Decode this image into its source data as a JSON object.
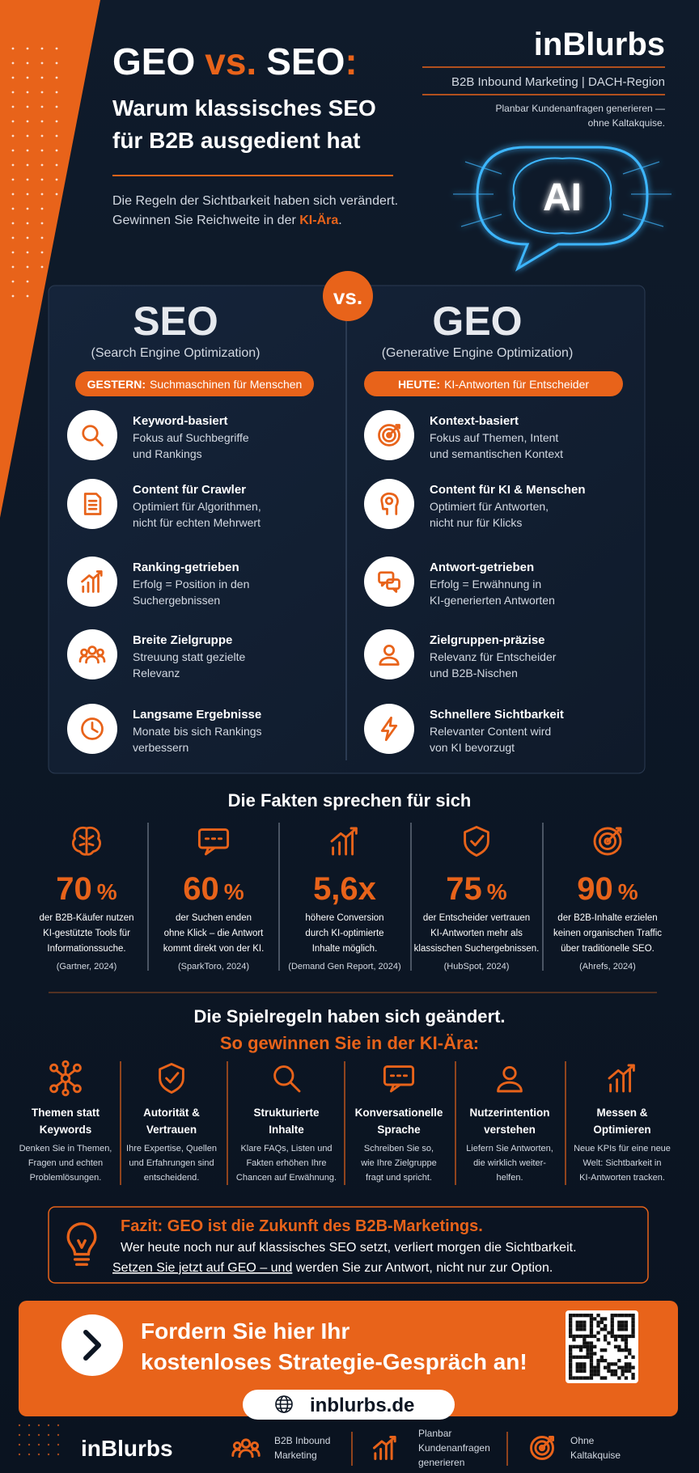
{
  "brand": {
    "name": "inBlurbs",
    "tagline": "B2B Inbound Marketing | DACH-Region",
    "claim_lines": [
      "Planbar Kundenanfragen generieren —",
      "ohne Kaltakquise."
    ],
    "ai": "AI"
  },
  "header": {
    "title": [
      "GEO",
      "vs.",
      "SEO",
      ":"
    ],
    "subtitle_lines": [
      "Warum klassisches SEO",
      "für B2B ausgedient hat"
    ],
    "intro_line1": "Die Regeln der Sichtbarkeit haben sich verändert.",
    "intro_line2": "Gewinnen Sie Reichweite in der ",
    "intro_highlight": "KI-Ära",
    "intro_end": "."
  },
  "comparison": {
    "vs": "vs.",
    "columns": [
      {
        "title": "SEO",
        "subtitle": "(Search Engine Optimization)",
        "badge_label": "GESTERN:",
        "badge_text": "Suchmaschinen für Menschen",
        "items": [
          {
            "title": "Keyword-basiert",
            "lines": [
              "Fokus auf Suchbegriffe",
              "und Rankings"
            ]
          },
          {
            "title": "Content für Crawler",
            "lines": [
              "Optimiert für Algorithmen,",
              "nicht für echten Mehrwert"
            ]
          },
          {
            "title": "Ranking-getrieben",
            "lines": [
              "Erfolg = Position in den",
              "Suchergebnissen"
            ]
          },
          {
            "title": "Breite Zielgruppe",
            "lines": [
              "Streuung statt gezielte",
              "Relevanz"
            ]
          },
          {
            "title": "Langsame Ergebnisse",
            "lines": [
              "Monate bis sich Rankings",
              "verbessern"
            ]
          }
        ]
      },
      {
        "title": "GEO",
        "subtitle": "(Generative Engine Optimization)",
        "badge_label": "HEUTE:",
        "badge_text": "KI-Antworten für Entscheider",
        "items": [
          {
            "title": "Kontext-basiert",
            "lines": [
              "Fokus auf Themen, Intent",
              "und semantischen Kontext"
            ]
          },
          {
            "title": "Content für KI & Menschen",
            "lines": [
              "Optimiert für Antworten,",
              "nicht nur für Klicks"
            ]
          },
          {
            "title": "Antwort-getrieben",
            "lines": [
              "Erfolg = Erwähnung in",
              "KI-generierten Antworten"
            ]
          },
          {
            "title": "Zielgruppen-präzise",
            "lines": [
              "Relevanz für Entscheider",
              "und B2B-Nischen"
            ]
          },
          {
            "title": "Schnellere Sichtbarkeit",
            "lines": [
              "Relevanter Content wird",
              "von KI bevorzugt"
            ]
          }
        ]
      }
    ]
  },
  "facts": {
    "title": "Die Fakten sprechen für sich",
    "items": [
      {
        "value": "70",
        "unit": "%",
        "lines": [
          "der B2B-Käufer nutzen",
          "KI-gestützte Tools für",
          "Informationssuche."
        ],
        "source": "(Gartner, 2024)"
      },
      {
        "value": "60",
        "unit": "%",
        "lines": [
          "der Suchen enden",
          "ohne Klick – die Antwort",
          "kommt direkt von der KI."
        ],
        "source": "(SparkToro, 2024)"
      },
      {
        "value": "5,6x",
        "lines": [
          "höhere Conversion",
          "durch KI-optimierte",
          "Inhalte möglich."
        ],
        "source": "(Demand Gen Report, 2024)"
      },
      {
        "value": "75",
        "unit": "%",
        "lines": [
          "der Entscheider vertrauen",
          "KI-Antworten mehr als",
          "klassischen Suchergebnissen."
        ],
        "source": "(HubSpot, 2024)"
      },
      {
        "value": "90",
        "unit": "%",
        "lines": [
          "der B2B-Inhalte erzielen",
          "keinen organischen Traffic",
          "über traditionelle SEO."
        ],
        "source": "(Ahrefs, 2024)"
      }
    ]
  },
  "rules": {
    "title": "Die Spielregeln haben sich geändert.",
    "subtitle": "So gewinnen Sie in der KI-Ära:",
    "items": [
      {
        "title_lines": [
          "Themen statt",
          "Keywords"
        ],
        "text_lines": [
          "Denken Sie in Themen,",
          "Fragen und echten",
          "Problemlösungen."
        ]
      },
      {
        "title_lines": [
          "Autorität &",
          "Vertrauen"
        ],
        "text_lines": [
          "Ihre Expertise, Quellen",
          "und Erfahrungen sind",
          "entscheidend."
        ]
      },
      {
        "title_lines": [
          "Strukturierte",
          "Inhalte"
        ],
        "text_lines": [
          "Klare FAQs, Listen und",
          "Fakten erhöhen Ihre",
          "Chancen auf Erwähnung."
        ]
      },
      {
        "title_lines": [
          "Konversationelle",
          "Sprache"
        ],
        "text_lines": [
          "Schreiben Sie so,",
          "wie Ihre Zielgruppe",
          "fragt und spricht."
        ]
      },
      {
        "title_lines": [
          "Nutzerintention",
          "verstehen"
        ],
        "text_lines": [
          "Liefern Sie Antworten,",
          "die wirklich weiter-",
          "helfen."
        ]
      },
      {
        "title_lines": [
          "Messen &",
          "Optimieren"
        ],
        "text_lines": [
          "Neue KPIs für eine neue",
          "Welt: Sichtbarkeit in",
          "KI-Antworten tracken."
        ]
      }
    ]
  },
  "conclusion": {
    "title": "Fazit: GEO ist die Zukunft des B2B-Marketings.",
    "line1": "Wer heute noch nur auf klassisches SEO setzt, verliert morgen die Sichtbarkeit.",
    "line2_underlined": "Setzen Sie jetzt auf GEO – und",
    "line2_rest": " werden Sie zur Antwort, nicht nur zur Option."
  },
  "cta": {
    "lines": [
      "Fordern Sie hier Ihr",
      "kostenloses Strategie-Gespräch an!"
    ],
    "url": "inblurbs.de"
  },
  "footer": {
    "brand": "inBlurbs",
    "items": [
      {
        "lines": [
          "B2B Inbound",
          "Marketing"
        ]
      },
      {
        "lines": [
          "Planbar",
          "Kundenanfragen",
          "generieren"
        ]
      },
      {
        "lines": [
          "Ohne",
          "Kaltakquise"
        ]
      }
    ]
  }
}
